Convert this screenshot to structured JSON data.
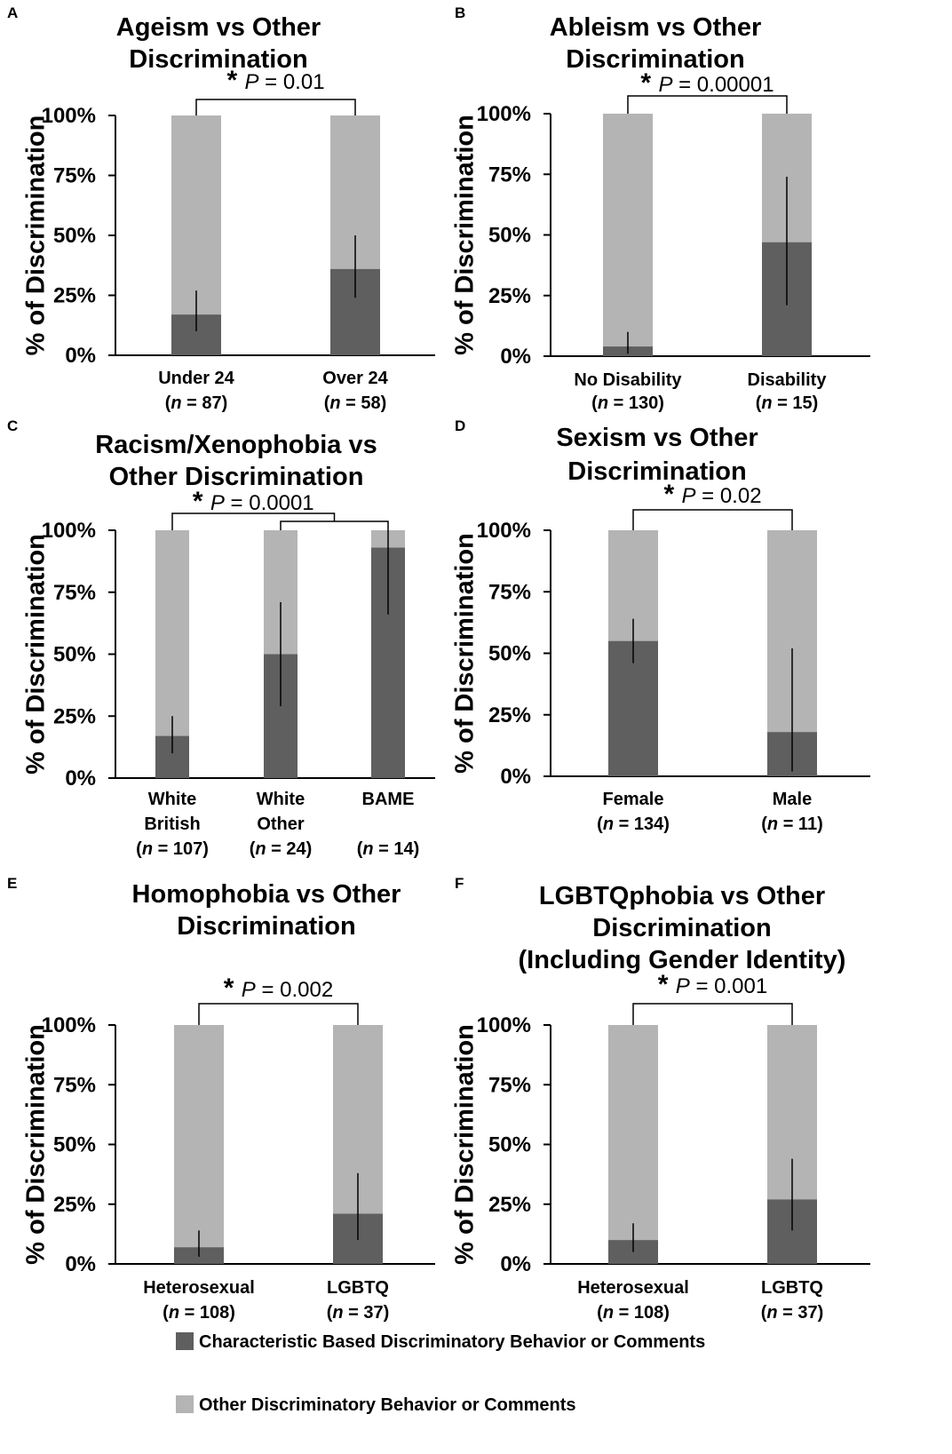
{
  "chart_data": [
    {
      "panel": "A",
      "type": "bar",
      "stacked": true,
      "title": [
        "Ageism vs Other",
        "Discrimination"
      ],
      "ylabel": "% of Discrimination",
      "ylim": [
        0,
        100
      ],
      "yticks": [
        "0%",
        "25%",
        "50%",
        "75%",
        "100%"
      ],
      "categories": [
        {
          "label": [
            "Under 24"
          ],
          "n": "87"
        },
        {
          "label": [
            "Over 24"
          ],
          "n": "58"
        }
      ],
      "series": [
        {
          "name": "Characteristic Based Discriminatory Behavior or Comments",
          "values": [
            17,
            36
          ]
        },
        {
          "name": "Other Discriminatory Behavior or Comments",
          "values": [
            83,
            64
          ]
        }
      ],
      "error_bars": [
        [
          10,
          27
        ],
        [
          24,
          50
        ]
      ],
      "significance": {
        "star": "*",
        "p_label": "P",
        "p_value": " = 0.01",
        "pairs": [
          [
            0,
            1
          ]
        ]
      }
    },
    {
      "panel": "B",
      "type": "bar",
      "stacked": true,
      "title": [
        "Ableism vs Other",
        "Discrimination"
      ],
      "ylabel": "% of Discrimination",
      "ylim": [
        0,
        100
      ],
      "yticks": [
        "0%",
        "25%",
        "50%",
        "75%",
        "100%"
      ],
      "categories": [
        {
          "label": [
            "No Disability"
          ],
          "n": "130"
        },
        {
          "label": [
            "Disability"
          ],
          "n": "15"
        }
      ],
      "series": [
        {
          "name": "Characteristic Based Discriminatory Behavior or Comments",
          "values": [
            4,
            47
          ]
        },
        {
          "name": "Other Discriminatory Behavior or Comments",
          "values": [
            96,
            53
          ]
        }
      ],
      "error_bars": [
        [
          1,
          10
        ],
        [
          21,
          74
        ]
      ],
      "significance": {
        "star": "*",
        "p_label": "P",
        "p_value": " = 0.00001",
        "pairs": [
          [
            0,
            1
          ]
        ]
      }
    },
    {
      "panel": "C",
      "type": "bar",
      "stacked": true,
      "title": [
        "Racism/Xenophobia vs",
        "Other Discrimination"
      ],
      "ylabel": "% of Discrimination",
      "ylim": [
        0,
        100
      ],
      "yticks": [
        "0%",
        "25%",
        "50%",
        "75%",
        "100%"
      ],
      "categories": [
        {
          "label": [
            "White",
            "British"
          ],
          "n": "107"
        },
        {
          "label": [
            "White",
            "Other"
          ],
          "n": "24"
        },
        {
          "label": [
            "BAME"
          ],
          "n": "14"
        }
      ],
      "series": [
        {
          "name": "Characteristic Based Discriminatory Behavior or Comments",
          "values": [
            17,
            50,
            93
          ]
        },
        {
          "name": "Other Discriminatory Behavior or Comments",
          "values": [
            83,
            50,
            7
          ]
        }
      ],
      "error_bars": [
        [
          10,
          25
        ],
        [
          29,
          71
        ],
        [
          66,
          100
        ]
      ],
      "significance": {
        "star": "*",
        "p_label": "P",
        "p_value": " = 0.0001",
        "pairs": [
          [
            0,
            1
          ],
          [
            1,
            2
          ]
        ]
      }
    },
    {
      "panel": "D",
      "type": "bar",
      "stacked": true,
      "title": [
        "Sexism vs Other",
        "Discrimination"
      ],
      "ylabel": "% of Discrimination",
      "ylim": [
        0,
        100
      ],
      "yticks": [
        "0%",
        "25%",
        "50%",
        "75%",
        "100%"
      ],
      "categories": [
        {
          "label": [
            "Female"
          ],
          "n": "134"
        },
        {
          "label": [
            "Male"
          ],
          "n": "11"
        }
      ],
      "series": [
        {
          "name": "Characteristic Based Discriminatory Behavior or Comments",
          "values": [
            55,
            18
          ]
        },
        {
          "name": "Other Discriminatory Behavior or Comments",
          "values": [
            45,
            82
          ]
        }
      ],
      "error_bars": [
        [
          46,
          64
        ],
        [
          2,
          52
        ]
      ],
      "significance": {
        "star": "*",
        "p_label": "P",
        "p_value": " = 0.02",
        "pairs": [
          [
            0,
            1
          ]
        ]
      }
    },
    {
      "panel": "E",
      "type": "bar",
      "stacked": true,
      "title": [
        "Homophobia vs Other",
        "Discrimination"
      ],
      "ylabel": "% of Discrimination",
      "ylim": [
        0,
        100
      ],
      "yticks": [
        "0%",
        "25%",
        "50%",
        "75%",
        "100%"
      ],
      "categories": [
        {
          "label": [
            "Heterosexual"
          ],
          "n": "108"
        },
        {
          "label": [
            "LGBTQ"
          ],
          "n": "37"
        }
      ],
      "series": [
        {
          "name": "Characteristic Based Discriminatory Behavior or Comments",
          "values": [
            7,
            21
          ]
        },
        {
          "name": "Other Discriminatory Behavior or Comments",
          "values": [
            93,
            79
          ]
        }
      ],
      "error_bars": [
        [
          3,
          14
        ],
        [
          10,
          38
        ]
      ],
      "significance": {
        "star": "*",
        "p_label": "P",
        "p_value": " = 0.002",
        "pairs": [
          [
            0,
            1
          ]
        ]
      }
    },
    {
      "panel": "F",
      "type": "bar",
      "stacked": true,
      "title": [
        "LGBTQphobia vs Other",
        "Discrimination",
        "(Including Gender Identity)"
      ],
      "ylabel": "% of Discrimination",
      "ylim": [
        0,
        100
      ],
      "yticks": [
        "0%",
        "25%",
        "50%",
        "75%",
        "100%"
      ],
      "categories": [
        {
          "label": [
            "Heterosexual"
          ],
          "n": "108"
        },
        {
          "label": [
            "LGBTQ"
          ],
          "n": "37"
        }
      ],
      "series": [
        {
          "name": "Characteristic Based Discriminatory Behavior or Comments",
          "values": [
            10,
            27
          ]
        },
        {
          "name": "Other Discriminatory Behavior or Comments",
          "values": [
            90,
            73
          ]
        }
      ],
      "error_bars": [
        [
          5,
          17
        ],
        [
          14,
          44
        ]
      ],
      "significance": {
        "star": "*",
        "p_label": "P",
        "p_value": " = 0.001",
        "pairs": [
          [
            0,
            1
          ]
        ]
      }
    }
  ],
  "legend": [
    {
      "label": "Characteristic Based Discriminatory Behavior or Comments",
      "color": "#5f5f5f"
    },
    {
      "label": "Other Discriminatory Behavior or Comments",
      "color": "#b4b4b4"
    }
  ],
  "colors": {
    "dark": "#5f5f5f",
    "light": "#b4b4b4",
    "axis": "#000000"
  },
  "n_label": "n"
}
